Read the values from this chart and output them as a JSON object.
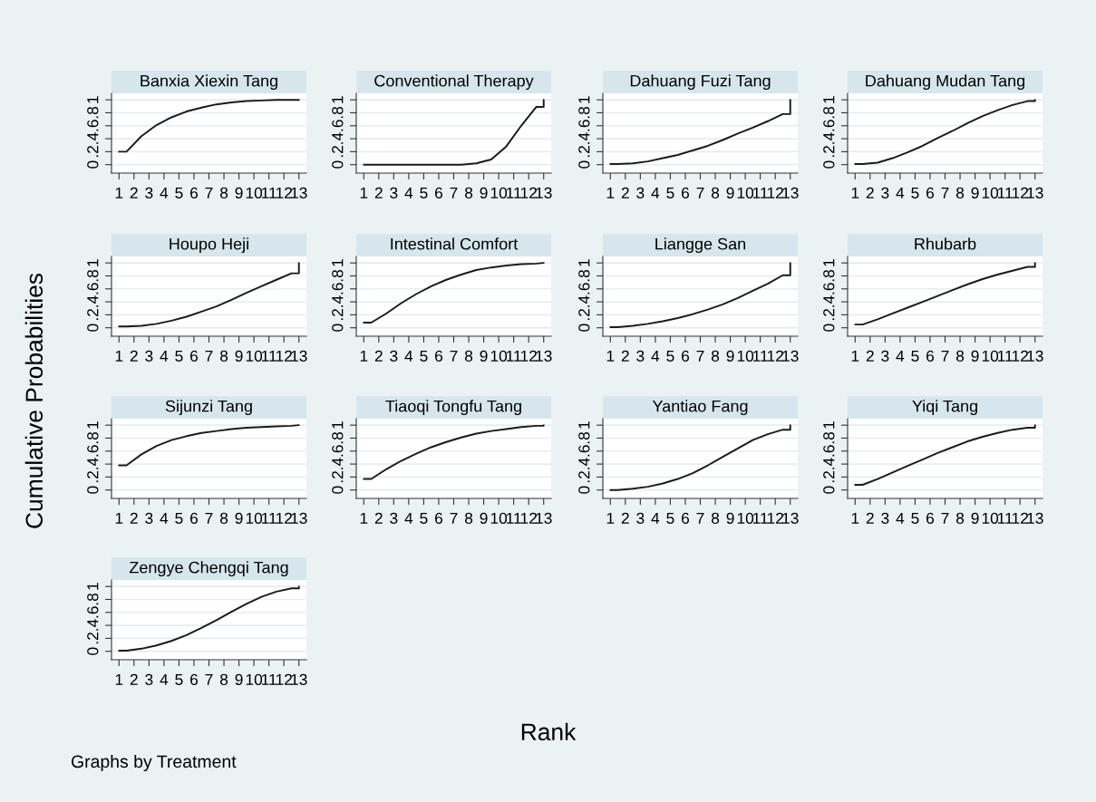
{
  "chart_data": [
    {
      "type": "line",
      "title": "Banxia Xiexin Tang",
      "ylabel": "Cumulative Probabilities",
      "annotations": [
        "Rank",
        "Graphs by Treatment"
      ],
      "x": [
        1,
        1.5,
        2.5,
        3.5,
        4.5,
        5.5,
        6.5,
        7.5,
        8.5,
        9.5,
        10.5,
        11.5,
        12.5,
        13,
        13
      ],
      "series": [
        {
          "color": "#1a1a1a",
          "values": [
            0.2,
            0.2,
            0.44,
            0.61,
            0.73,
            0.82,
            0.88,
            0.93,
            0.96,
            0.98,
            0.99,
            1,
            1,
            1,
            1
          ]
        }
      ],
      "xlim": [
        0.5,
        13.5
      ],
      "xticks": [
        1,
        2,
        3,
        4,
        5,
        6,
        7,
        8,
        9,
        10,
        11,
        12,
        13
      ],
      "ylim": [
        -0.13,
        1.1
      ],
      "yticks": [
        0,
        {
          "value": 0.2,
          "label": ".2"
        },
        {
          "value": 0.4,
          "label": ".4"
        },
        {
          "value": 0.6,
          "label": ".6"
        },
        {
          "value": 0.8,
          "label": ".8"
        },
        1
      ],
      "grid": "y"
    },
    {
      "type": "line",
      "title": "Conventional Therapy",
      "x": [
        1,
        1.5,
        2.5,
        3.5,
        4.5,
        5.5,
        6.5,
        7.5,
        8.5,
        9.5,
        10.5,
        11.5,
        12.5,
        13,
        13
      ],
      "series": [
        {
          "color": "#1a1a1a",
          "values": [
            0,
            0,
            0,
            0,
            0,
            0,
            0,
            0,
            0.02,
            0.08,
            0.28,
            0.6,
            0.89,
            0.89,
            1
          ]
        }
      ],
      "xlim": [
        0.5,
        13.5
      ],
      "xticks": [
        1,
        2,
        3,
        4,
        5,
        6,
        7,
        8,
        9,
        10,
        11,
        12,
        13
      ],
      "ylim": [
        -0.13,
        1.1
      ],
      "yticks": [
        0,
        {
          "value": 0.2,
          "label": ".2"
        },
        {
          "value": 0.4,
          "label": ".4"
        },
        {
          "value": 0.6,
          "label": ".6"
        },
        {
          "value": 0.8,
          "label": ".8"
        },
        1
      ],
      "grid": "y"
    },
    {
      "type": "line",
      "title": "Dahuang Fuzi Tang",
      "x": [
        1,
        1.5,
        2.5,
        3.5,
        4.5,
        5.5,
        6.5,
        7.5,
        8.5,
        9.5,
        10.5,
        11.5,
        12.5,
        13,
        13
      ],
      "series": [
        {
          "color": "#1a1a1a",
          "values": [
            0.01,
            0.01,
            0.02,
            0.05,
            0.1,
            0.15,
            0.22,
            0.29,
            0.38,
            0.48,
            0.57,
            0.67,
            0.78,
            0.78,
            1
          ]
        }
      ],
      "xlim": [
        0.5,
        13.5
      ],
      "xticks": [
        1,
        2,
        3,
        4,
        5,
        6,
        7,
        8,
        9,
        10,
        11,
        12,
        13
      ],
      "ylim": [
        -0.13,
        1.1
      ],
      "yticks": [
        0,
        {
          "value": 0.2,
          "label": ".2"
        },
        {
          "value": 0.4,
          "label": ".4"
        },
        {
          "value": 0.6,
          "label": ".6"
        },
        {
          "value": 0.8,
          "label": ".8"
        },
        1
      ],
      "grid": "y"
    },
    {
      "type": "line",
      "title": "Dahuang Mudan Tang",
      "x": [
        1,
        1.5,
        2.5,
        3.5,
        4.5,
        5.5,
        6.5,
        7.5,
        8.5,
        9.5,
        10.5,
        11.5,
        12.5,
        13,
        13
      ],
      "series": [
        {
          "color": "#1a1a1a",
          "values": [
            0.01,
            0.01,
            0.03,
            0.1,
            0.19,
            0.29,
            0.41,
            0.52,
            0.64,
            0.75,
            0.84,
            0.92,
            0.98,
            0.98,
            1
          ]
        }
      ],
      "xlim": [
        0.5,
        13.5
      ],
      "xticks": [
        1,
        2,
        3,
        4,
        5,
        6,
        7,
        8,
        9,
        10,
        11,
        12,
        13
      ],
      "ylim": [
        -0.13,
        1.1
      ],
      "yticks": [
        0,
        {
          "value": 0.2,
          "label": ".2"
        },
        {
          "value": 0.4,
          "label": ".4"
        },
        {
          "value": 0.6,
          "label": ".6"
        },
        {
          "value": 0.8,
          "label": ".8"
        },
        1
      ],
      "grid": "y"
    },
    {
      "type": "line",
      "title": "Houpo Heji",
      "x": [
        1,
        1.5,
        2.5,
        3.5,
        4.5,
        5.5,
        6.5,
        7.5,
        8.5,
        9.5,
        10.5,
        11.5,
        12.5,
        13,
        13
      ],
      "series": [
        {
          "color": "#1a1a1a",
          "values": [
            0.02,
            0.02,
            0.03,
            0.06,
            0.11,
            0.17,
            0.25,
            0.33,
            0.43,
            0.54,
            0.64,
            0.74,
            0.84,
            0.84,
            1
          ]
        }
      ],
      "xlim": [
        0.5,
        13.5
      ],
      "xticks": [
        1,
        2,
        3,
        4,
        5,
        6,
        7,
        8,
        9,
        10,
        11,
        12,
        13
      ],
      "ylim": [
        -0.13,
        1.1
      ],
      "yticks": [
        0,
        {
          "value": 0.2,
          "label": ".2"
        },
        {
          "value": 0.4,
          "label": ".4"
        },
        {
          "value": 0.6,
          "label": ".6"
        },
        {
          "value": 0.8,
          "label": ".8"
        },
        1
      ],
      "grid": "y"
    },
    {
      "type": "line",
      "title": "Intestinal Comfort",
      "x": [
        1,
        1.5,
        2.5,
        3.5,
        4.5,
        5.5,
        6.5,
        7.5,
        8.5,
        9.5,
        10.5,
        11.5,
        12.5,
        13,
        13
      ],
      "series": [
        {
          "color": "#1a1a1a",
          "values": [
            0.08,
            0.08,
            0.22,
            0.38,
            0.52,
            0.64,
            0.74,
            0.82,
            0.89,
            0.93,
            0.96,
            0.98,
            0.99,
            1,
            1
          ]
        }
      ],
      "xlim": [
        0.5,
        13.5
      ],
      "xticks": [
        1,
        2,
        3,
        4,
        5,
        6,
        7,
        8,
        9,
        10,
        11,
        12,
        13
      ],
      "ylim": [
        -0.13,
        1.1
      ],
      "yticks": [
        0,
        {
          "value": 0.2,
          "label": ".2"
        },
        {
          "value": 0.4,
          "label": ".4"
        },
        {
          "value": 0.6,
          "label": ".6"
        },
        {
          "value": 0.8,
          "label": ".8"
        },
        1
      ],
      "grid": "y"
    },
    {
      "type": "line",
      "title": "Liangge San",
      "x": [
        1,
        1.5,
        2.5,
        3.5,
        4.5,
        5.5,
        6.5,
        7.5,
        8.5,
        9.5,
        10.5,
        11.5,
        12.5,
        13,
        13
      ],
      "series": [
        {
          "color": "#1a1a1a",
          "values": [
            0.01,
            0.01,
            0.03,
            0.06,
            0.1,
            0.15,
            0.21,
            0.28,
            0.36,
            0.46,
            0.57,
            0.68,
            0.81,
            0.81,
            1
          ]
        }
      ],
      "xlim": [
        0.5,
        13.5
      ],
      "xticks": [
        1,
        2,
        3,
        4,
        5,
        6,
        7,
        8,
        9,
        10,
        11,
        12,
        13
      ],
      "ylim": [
        -0.13,
        1.1
      ],
      "yticks": [
        0,
        {
          "value": 0.2,
          "label": ".2"
        },
        {
          "value": 0.4,
          "label": ".4"
        },
        {
          "value": 0.6,
          "label": ".6"
        },
        {
          "value": 0.8,
          "label": ".8"
        },
        1
      ],
      "grid": "y"
    },
    {
      "type": "line",
      "title": "Rhubarb",
      "x": [
        1,
        1.5,
        2.5,
        3.5,
        4.5,
        5.5,
        6.5,
        7.5,
        8.5,
        9.5,
        10.5,
        11.5,
        12.5,
        13,
        13
      ],
      "series": [
        {
          "color": "#1a1a1a",
          "values": [
            0.05,
            0.05,
            0.13,
            0.22,
            0.31,
            0.4,
            0.49,
            0.58,
            0.67,
            0.75,
            0.82,
            0.88,
            0.94,
            0.94,
            1
          ]
        }
      ],
      "xlim": [
        0.5,
        13.5
      ],
      "xticks": [
        1,
        2,
        3,
        4,
        5,
        6,
        7,
        8,
        9,
        10,
        11,
        12,
        13
      ],
      "ylim": [
        -0.13,
        1.1
      ],
      "yticks": [
        0,
        {
          "value": 0.2,
          "label": ".2"
        },
        {
          "value": 0.4,
          "label": ".4"
        },
        {
          "value": 0.6,
          "label": ".6"
        },
        {
          "value": 0.8,
          "label": ".8"
        },
        1
      ],
      "grid": "y"
    },
    {
      "type": "line",
      "title": "Sijunzi Tang",
      "x": [
        1,
        1.5,
        2.5,
        3.5,
        4.5,
        5.5,
        6.5,
        7.5,
        8.5,
        9.5,
        10.5,
        11.5,
        12.5,
        13,
        13
      ],
      "series": [
        {
          "color": "#1a1a1a",
          "values": [
            0.38,
            0.38,
            0.55,
            0.68,
            0.77,
            0.83,
            0.88,
            0.91,
            0.94,
            0.96,
            0.97,
            0.98,
            0.99,
            1,
            1
          ]
        }
      ],
      "xlim": [
        0.5,
        13.5
      ],
      "xticks": [
        1,
        2,
        3,
        4,
        5,
        6,
        7,
        8,
        9,
        10,
        11,
        12,
        13
      ],
      "ylim": [
        -0.13,
        1.1
      ],
      "yticks": [
        0,
        {
          "value": 0.2,
          "label": ".2"
        },
        {
          "value": 0.4,
          "label": ".4"
        },
        {
          "value": 0.6,
          "label": ".6"
        },
        {
          "value": 0.8,
          "label": ".8"
        },
        1
      ],
      "grid": "y"
    },
    {
      "type": "line",
      "title": "Tiaoqi Tongfu Tang",
      "x": [
        1,
        1.5,
        2.5,
        3.5,
        4.5,
        5.5,
        6.5,
        7.5,
        8.5,
        9.5,
        10.5,
        11.5,
        12.5,
        13,
        13
      ],
      "series": [
        {
          "color": "#1a1a1a",
          "values": [
            0.17,
            0.17,
            0.32,
            0.45,
            0.56,
            0.66,
            0.74,
            0.81,
            0.87,
            0.91,
            0.94,
            0.97,
            0.99,
            0.99,
            1
          ]
        }
      ],
      "xlim": [
        0.5,
        13.5
      ],
      "xticks": [
        1,
        2,
        3,
        4,
        5,
        6,
        7,
        8,
        9,
        10,
        11,
        12,
        13
      ],
      "ylim": [
        -0.13,
        1.1
      ],
      "yticks": [
        0,
        {
          "value": 0.2,
          "label": ".2"
        },
        {
          "value": 0.4,
          "label": ".4"
        },
        {
          "value": 0.6,
          "label": ".6"
        },
        {
          "value": 0.8,
          "label": ".8"
        },
        1
      ],
      "grid": "y"
    },
    {
      "type": "line",
      "title": "Yantiao Fang",
      "x": [
        1,
        1.5,
        2.5,
        3.5,
        4.5,
        5.5,
        6.5,
        7.5,
        8.5,
        9.5,
        10.5,
        11.5,
        12.5,
        13,
        13
      ],
      "series": [
        {
          "color": "#1a1a1a",
          "values": [
            0,
            0,
            0.02,
            0.05,
            0.1,
            0.17,
            0.26,
            0.38,
            0.51,
            0.64,
            0.77,
            0.86,
            0.93,
            0.93,
            1
          ]
        }
      ],
      "xlim": [
        0.5,
        13.5
      ],
      "xticks": [
        1,
        2,
        3,
        4,
        5,
        6,
        7,
        8,
        9,
        10,
        11,
        12,
        13
      ],
      "ylim": [
        -0.13,
        1.1
      ],
      "yticks": [
        0,
        {
          "value": 0.2,
          "label": ".2"
        },
        {
          "value": 0.4,
          "label": ".4"
        },
        {
          "value": 0.6,
          "label": ".6"
        },
        {
          "value": 0.8,
          "label": ".8"
        },
        1
      ],
      "grid": "y"
    },
    {
      "type": "line",
      "title": "Yiqi Tang",
      "x": [
        1,
        1.5,
        2.5,
        3.5,
        4.5,
        5.5,
        6.5,
        7.5,
        8.5,
        9.5,
        10.5,
        11.5,
        12.5,
        13,
        13
      ],
      "series": [
        {
          "color": "#1a1a1a",
          "values": [
            0.08,
            0.08,
            0.17,
            0.27,
            0.37,
            0.47,
            0.57,
            0.66,
            0.75,
            0.82,
            0.88,
            0.93,
            0.96,
            0.96,
            1
          ]
        }
      ],
      "xlim": [
        0.5,
        13.5
      ],
      "xticks": [
        1,
        2,
        3,
        4,
        5,
        6,
        7,
        8,
        9,
        10,
        11,
        12,
        13
      ],
      "ylim": [
        -0.13,
        1.1
      ],
      "yticks": [
        0,
        {
          "value": 0.2,
          "label": ".2"
        },
        {
          "value": 0.4,
          "label": ".4"
        },
        {
          "value": 0.6,
          "label": ".6"
        },
        {
          "value": 0.8,
          "label": ".8"
        },
        1
      ],
      "grid": "y"
    },
    {
      "type": "line",
      "title": "Zengye Chengqi Tang",
      "x": [
        1,
        1.5,
        2.5,
        3.5,
        4.5,
        5.5,
        6.5,
        7.5,
        8.5,
        9.5,
        10.5,
        11.5,
        12.5,
        13,
        13
      ],
      "series": [
        {
          "color": "#1a1a1a",
          "values": [
            0.01,
            0.01,
            0.04,
            0.09,
            0.16,
            0.25,
            0.36,
            0.48,
            0.61,
            0.73,
            0.84,
            0.92,
            0.97,
            0.97,
            1
          ]
        }
      ],
      "xlim": [
        0.5,
        13.5
      ],
      "xticks": [
        1,
        2,
        3,
        4,
        5,
        6,
        7,
        8,
        9,
        10,
        11,
        12,
        13
      ],
      "ylim": [
        -0.13,
        1.1
      ],
      "yticks": [
        0,
        {
          "value": 0.2,
          "label": ".2"
        },
        {
          "value": 0.4,
          "label": ".4"
        },
        {
          "value": 0.6,
          "label": ".6"
        },
        {
          "value": 0.8,
          "label": ".8"
        },
        1
      ],
      "grid": "y"
    }
  ]
}
